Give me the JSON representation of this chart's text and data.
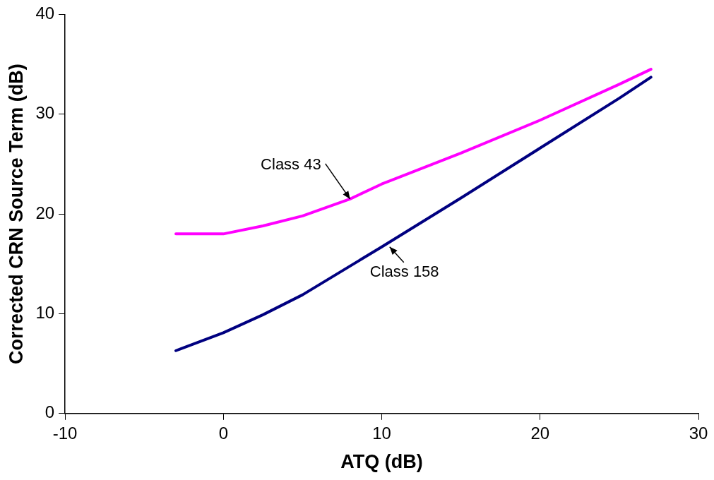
{
  "chart_data": {
    "type": "line",
    "xlabel": "ATQ (dB)",
    "ylabel": "Corrected CRN Source Term (dB)",
    "xlim": [
      -10,
      30
    ],
    "xticks": [
      -10,
      0,
      10,
      20,
      30
    ],
    "ylim": [
      0,
      40
    ],
    "yticks": [
      0,
      10,
      20,
      30,
      40
    ],
    "grid": false,
    "legend": false,
    "marker": "none",
    "line_style": "solid",
    "series": [
      {
        "color": "#ff00ff",
        "x": [
          -3,
          0,
          2.5,
          5,
          8,
          10,
          15,
          20,
          25,
          27
        ],
        "values": [
          18,
          18,
          18.8,
          19.8,
          21.5,
          23,
          26.1,
          29.4,
          33,
          34.5
        ]
      },
      {
        "color": "#000080",
        "x": [
          -3,
          0,
          2.5,
          5,
          10,
          15,
          20,
          25,
          27
        ],
        "values": [
          6.3,
          8.1,
          9.9,
          11.9,
          16.7,
          21.6,
          26.6,
          31.6,
          33.7
        ]
      }
    ],
    "annotations": [
      {
        "text": "Class 43",
        "x": 8,
        "y": 21.5
      },
      {
        "text": "Class 158",
        "x": 10.5,
        "y": 16.7
      }
    ]
  }
}
